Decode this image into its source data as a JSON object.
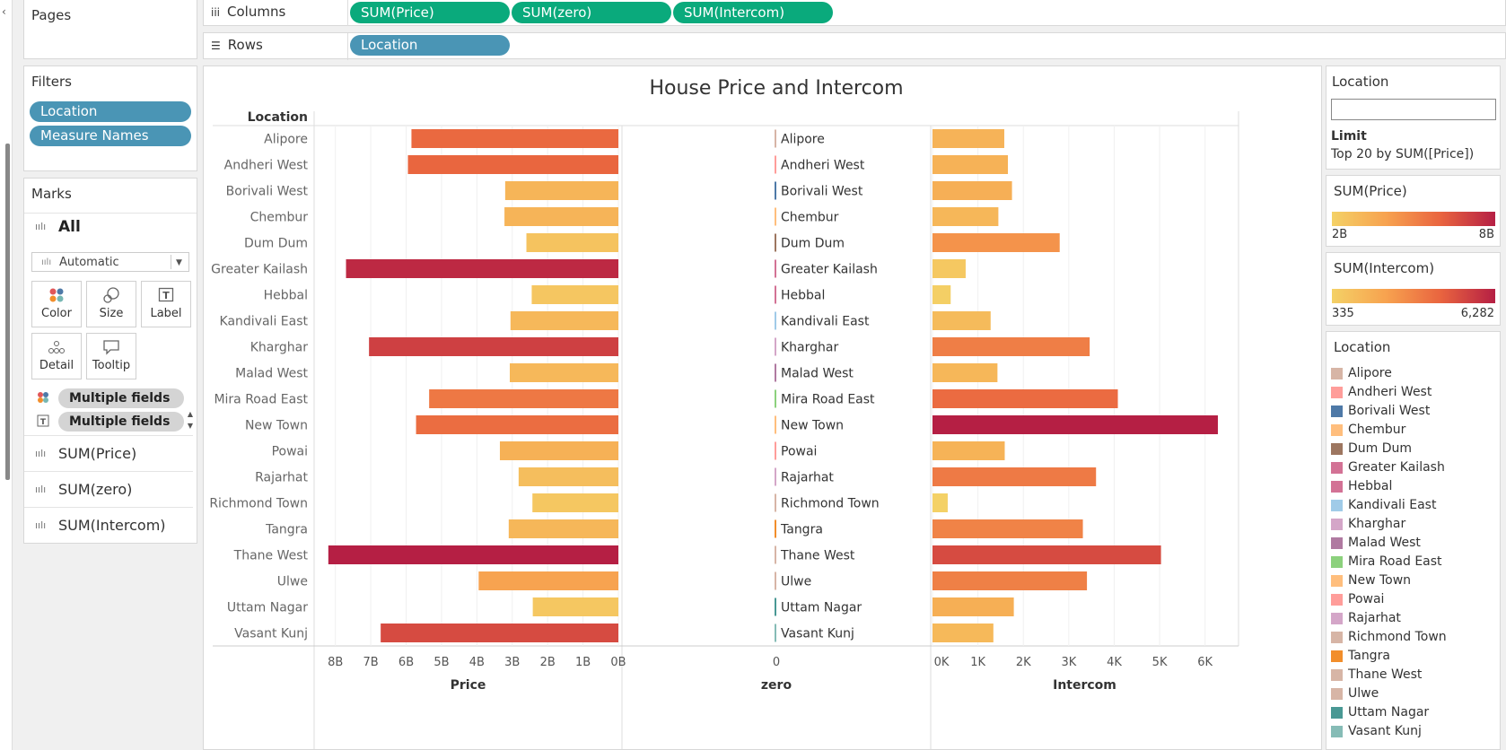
{
  "shelves": {
    "pages_label": "Pages",
    "columns_label": "Columns",
    "rows_label": "Rows",
    "columns_pills": [
      "SUM(Price)",
      "SUM(zero)",
      "SUM(Intercom)"
    ],
    "rows_pills": [
      "Location"
    ]
  },
  "filters": {
    "title": "Filters",
    "items": [
      "Location",
      "Measure Names"
    ]
  },
  "marks": {
    "title": "Marks",
    "all_label": "All",
    "mark_type": "Automatic",
    "buttons": {
      "color": "Color",
      "size": "Size",
      "label": "Label",
      "detail": "Detail",
      "tooltip": "Tooltip"
    },
    "fields": [
      "Multiple fields",
      "Multiple fields"
    ],
    "measures": [
      "SUM(Price)",
      "SUM(zero)",
      "SUM(Intercom)"
    ]
  },
  "right_panel": {
    "location_filter_title": "Location",
    "limit_label": "Limit",
    "limit_value": "Top 20 by SUM([Price])",
    "price_legend": {
      "title": "SUM(Price)",
      "min": "2B",
      "max": "8B",
      "color_low": "#f4d166",
      "color_high": "#b51f44"
    },
    "intercom_legend": {
      "title": "SUM(Intercom)",
      "min": "335",
      "max": "6,282",
      "color_low": "#f4d166",
      "color_high": "#b51f44"
    },
    "location_legend": {
      "title": "Location",
      "items": [
        {
          "label": "Alipore",
          "color": "#d7b5a6"
        },
        {
          "label": "Andheri West",
          "color": "#ff9d9a"
        },
        {
          "label": "Borivali West",
          "color": "#4e79a7"
        },
        {
          "label": "Chembur",
          "color": "#ffbe7d"
        },
        {
          "label": "Dum Dum",
          "color": "#9d7660"
        },
        {
          "label": "Greater Kailash",
          "color": "#d37295"
        },
        {
          "label": "Hebbal",
          "color": "#d37295"
        },
        {
          "label": "Kandivali East",
          "color": "#a0cbe8"
        },
        {
          "label": "Kharghar",
          "color": "#d4a6c8"
        },
        {
          "label": "Malad West",
          "color": "#b07aa1"
        },
        {
          "label": "Mira Road East",
          "color": "#8cd17d"
        },
        {
          "label": "New Town",
          "color": "#ffbe7d"
        },
        {
          "label": "Powai",
          "color": "#ff9d9a"
        },
        {
          "label": "Rajarhat",
          "color": "#d4a6c8"
        },
        {
          "label": "Richmond Town",
          "color": "#d7b5a6"
        },
        {
          "label": "Tangra",
          "color": "#f28e2b"
        },
        {
          "label": "Thane West",
          "color": "#d7b5a6"
        },
        {
          "label": "Ulwe",
          "color": "#d7b5a6"
        },
        {
          "label": "Uttam Nagar",
          "color": "#499894"
        },
        {
          "label": "Vasant Kunj",
          "color": "#86bcb6"
        }
      ]
    }
  },
  "chart_data": {
    "type": "bar",
    "title": "House Price and Intercom",
    "row_header": "Location",
    "categories": [
      "Alipore",
      "Andheri West",
      "Borivali West",
      "Chembur",
      "Dum Dum",
      "Greater Kailash",
      "Hebbal",
      "Kandivali East",
      "Kharghar",
      "Malad West",
      "Mira Road East",
      "New Town",
      "Powai",
      "Rajarhat",
      "Richmond Town",
      "Tangra",
      "Thane West",
      "Ulwe",
      "Uttam Nagar",
      "Vasant Kunj"
    ],
    "series": [
      {
        "name": "Price",
        "values": [
          5.85,
          5.95,
          3.2,
          3.22,
          2.6,
          7.7,
          2.45,
          3.05,
          7.05,
          3.07,
          5.35,
          5.72,
          3.35,
          2.82,
          2.43,
          3.1,
          8.2,
          3.95,
          2.42,
          6.72
        ],
        "unit": "B"
      },
      {
        "name": "zero",
        "values": [
          0,
          0,
          0,
          0,
          0,
          0,
          0,
          0,
          0,
          0,
          0,
          0,
          0,
          0,
          0,
          0,
          0,
          0,
          0,
          0
        ]
      },
      {
        "name": "Intercom",
        "values": [
          1580,
          1660,
          1750,
          1450,
          2800,
          730,
          400,
          1280,
          3460,
          1430,
          4080,
          6282,
          1590,
          3600,
          335,
          3310,
          5030,
          3400,
          1790,
          1340
        ]
      }
    ],
    "axes": [
      {
        "title": "Price",
        "range": [
          0,
          8.5
        ],
        "reversed": true,
        "ticks": [
          "8B",
          "7B",
          "6B",
          "5B",
          "4B",
          "3B",
          "2B",
          "1B",
          "0B"
        ]
      },
      {
        "title": "zero",
        "ticks": [
          "0"
        ]
      },
      {
        "title": "Intercom",
        "range": [
          0,
          6500
        ],
        "ticks": [
          "0K",
          "1K",
          "2K",
          "3K",
          "4K",
          "5K",
          "6K"
        ]
      }
    ],
    "color_range": {
      "price": [
        2,
        8
      ],
      "intercom": [
        335,
        6282
      ]
    }
  }
}
